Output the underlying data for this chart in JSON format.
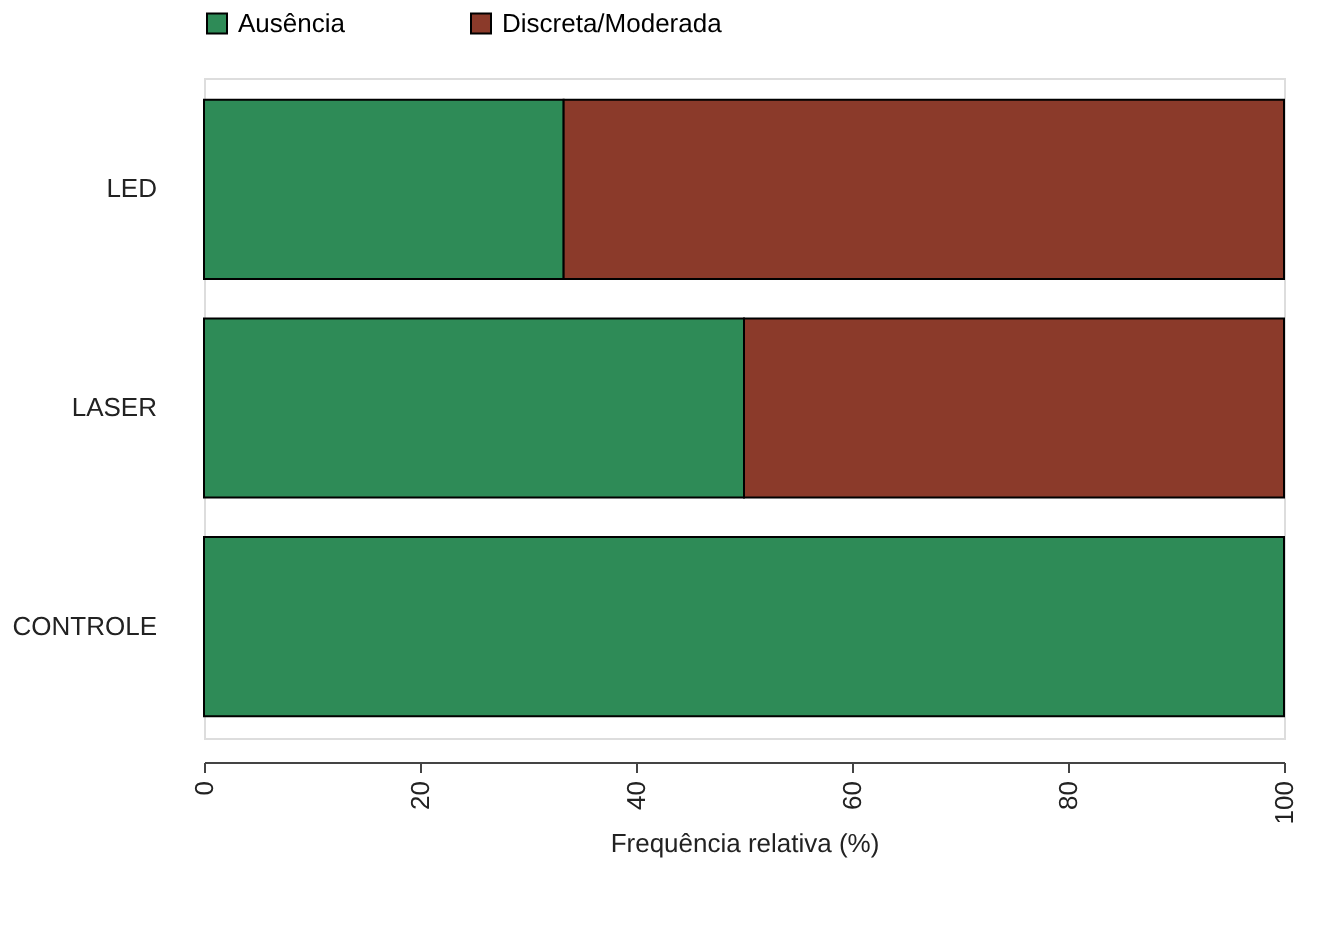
{
  "chart_data": {
    "type": "bar",
    "orientation": "horizontal",
    "stacked": true,
    "xlabel": "Frequência relativa (%)",
    "categories": [
      "LED",
      "LASER",
      "CONTROLE"
    ],
    "series": [
      {
        "name": "Ausência",
        "color": "#2e8b57",
        "values": [
          33.3,
          50,
          100
        ]
      },
      {
        "name": "Discreta/Moderada",
        "color": "#8b3a2a",
        "values": [
          66.7,
          50,
          null
        ]
      }
    ],
    "xlim": [
      0,
      100
    ],
    "xticks": [
      0,
      20,
      40,
      60,
      80,
      100
    ],
    "legend": "top",
    "grid": false
  }
}
